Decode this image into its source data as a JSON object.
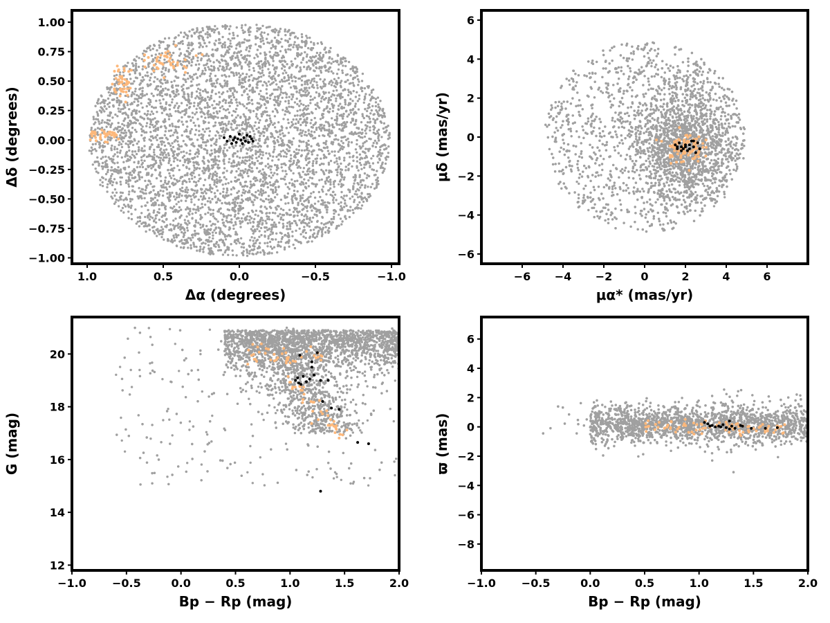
{
  "colors": {
    "field": "#a0a0a0",
    "members_orange": "#fdb87b",
    "members_black": "#000000"
  },
  "chart_data": [
    {
      "type": "scatter",
      "xlabel": "Δα (degrees)",
      "ylabel": "Δδ (degrees)",
      "xlim": [
        1.1,
        -1.05
      ],
      "ylim": [
        -1.05,
        1.1
      ],
      "x_inverted": true,
      "xticks": [
        1.0,
        0.5,
        0.0,
        -0.5,
        -1.0
      ],
      "xtick_labels": [
        "1.0",
        "0.5",
        "0.0",
        "−0.5",
        "−1.0"
      ],
      "yticks": [
        1.0,
        0.75,
        0.5,
        0.25,
        0.0,
        -0.25,
        -0.5,
        -0.75,
        -1.0
      ],
      "ytick_labels": [
        "1.00",
        "0.75",
        "0.50",
        "0.25",
        "0.00",
        "−0.25",
        "−0.50",
        "−0.75",
        "−1.00"
      ],
      "series": [
        {
          "role": "field",
          "color": "#a0a0a0",
          "n_points_approx": 5000,
          "distribution": "uniform disk centred (0,0), radius 1.0 deg"
        },
        {
          "role": "orange",
          "color": "#fdb87b",
          "groups": [
            {
              "center": [
                0.77,
                0.48
              ],
              "spread": [
                0.03,
                0.08
              ],
              "n": 45
            },
            {
              "center": [
                0.45,
                0.68
              ],
              "spread": [
                0.07,
                0.05
              ],
              "n": 40
            },
            {
              "center": [
                0.88,
                0.04
              ],
              "spread": [
                0.06,
                0.03
              ],
              "n": 35
            }
          ]
        },
        {
          "role": "black",
          "color": "#000000",
          "points": [
            [
              0.1,
              0.02
            ],
            [
              0.08,
              -0.01
            ],
            [
              0.06,
              0.03
            ],
            [
              0.04,
              0.0
            ],
            [
              0.02,
              -0.02
            ],
            [
              0.01,
              0.01
            ],
            [
              -0.01,
              0.0
            ],
            [
              -0.02,
              -0.03
            ],
            [
              -0.03,
              0.02
            ],
            [
              -0.05,
              0.04
            ],
            [
              -0.06,
              -0.02
            ],
            [
              -0.08,
              0.01
            ],
            [
              -0.09,
              -0.01
            ],
            [
              -0.07,
              0.03
            ],
            [
              0.05,
              -0.03
            ],
            [
              0.0,
              0.05
            ],
            [
              -0.04,
              -0.01
            ],
            [
              0.03,
              0.02
            ]
          ]
        }
      ]
    },
    {
      "type": "scatter",
      "xlabel": "μα* (mas/yr)",
      "ylabel": "μδ (mas/yr)",
      "xlim": [
        -8.0,
        8.0
      ],
      "ylim": [
        -6.5,
        6.5
      ],
      "xticks": [
        -6,
        -4,
        -2,
        0,
        2,
        4,
        6
      ],
      "xtick_labels": [
        "−6",
        "−4",
        "−2",
        "0",
        "2",
        "4",
        "6"
      ],
      "yticks": [
        -6,
        -4,
        -2,
        0,
        2,
        4,
        6
      ],
      "ytick_labels": [
        "−6",
        "−4",
        "−2",
        "0",
        "2",
        "4",
        "6"
      ],
      "series": [
        {
          "role": "field",
          "color": "#a0a0a0",
          "n_points_approx": 5000,
          "distribution": "disk centred (0,0), radius 5 mas/yr, concentrated near (2,-0.5)"
        },
        {
          "role": "orange",
          "color": "#fdb87b",
          "center": [
            1.9,
            -0.5
          ],
          "spread": [
            0.45,
            0.4
          ],
          "n": 90
        },
        {
          "role": "black",
          "color": "#000000",
          "points": [
            [
              1.5,
              -0.4
            ],
            [
              1.6,
              -0.6
            ],
            [
              1.8,
              -0.5
            ],
            [
              2.0,
              -0.4
            ],
            [
              2.2,
              -0.6
            ],
            [
              2.4,
              -0.5
            ],
            [
              2.6,
              -0.3
            ],
            [
              1.7,
              -0.3
            ],
            [
              2.1,
              -0.7
            ],
            [
              2.3,
              -0.2
            ],
            [
              1.9,
              -0.6
            ],
            [
              2.5,
              -0.8
            ],
            [
              2.0,
              -0.5
            ],
            [
              1.6,
              -0.5
            ],
            [
              2.2,
              -0.4
            ],
            [
              2.7,
              -0.6
            ],
            [
              1.8,
              -0.7
            ],
            [
              2.4,
              -0.2
            ]
          ]
        }
      ]
    },
    {
      "type": "scatter",
      "xlabel": "Bp − Rp (mag)",
      "ylabel": "G (mag)",
      "xlim": [
        -1.0,
        2.0
      ],
      "ylim": [
        11.8,
        21.4
      ],
      "y_inverted": false,
      "xticks": [
        -1.0,
        -0.5,
        0.0,
        0.5,
        1.0,
        1.5,
        2.0
      ],
      "xtick_labels": [
        "−1.0",
        "−0.5",
        "0.0",
        "0.5",
        "1.0",
        "1.5",
        "2.0"
      ],
      "yticks": [
        12,
        14,
        16,
        18,
        20
      ],
      "ytick_labels": [
        "12",
        "14",
        "16",
        "18",
        "20"
      ],
      "series": [
        {
          "role": "field",
          "color": "#a0a0a0",
          "n_points_approx": 4500,
          "distribution": "dense band G 19–21 for Bp−Rp 0.3–2.0, diagonal sequence down to G≈16 at Bp−Rp≈1.6"
        },
        {
          "role": "orange",
          "color": "#fdb87b",
          "n": 80,
          "sequence": "along G≈20 at 0.5–1.2 and diagonal G 19→17 at Bp−Rp 1.0→1.5"
        },
        {
          "role": "black",
          "color": "#000000",
          "points": [
            [
              1.09,
              19.95
            ],
            [
              1.2,
              19.7
            ],
            [
              1.25,
              20.05
            ],
            [
              1.07,
              19.1
            ],
            [
              1.12,
              19.15
            ],
            [
              1.05,
              19.0
            ],
            [
              1.18,
              19.05
            ],
            [
              1.22,
              19.2
            ],
            [
              1.28,
              19.0
            ],
            [
              1.35,
              19.0
            ],
            [
              1.08,
              18.9
            ],
            [
              1.15,
              18.95
            ],
            [
              1.3,
              18.2
            ],
            [
              1.38,
              17.95
            ],
            [
              1.45,
              17.9
            ],
            [
              1.62,
              16.65
            ],
            [
              1.72,
              16.6
            ],
            [
              1.28,
              14.8
            ],
            [
              1.2,
              19.5
            ],
            [
              1.1,
              18.85
            ]
          ]
        }
      ]
    },
    {
      "type": "scatter",
      "xlabel": "Bp − Rp (mag)",
      "ylabel": "ϖ (mas)",
      "xlim": [
        -1.0,
        2.0
      ],
      "ylim": [
        -9.8,
        7.5
      ],
      "xticks": [
        -1.0,
        -0.5,
        0.0,
        0.5,
        1.0,
        1.5,
        2.0
      ],
      "xtick_labels": [
        "−1.0",
        "−0.5",
        "0.0",
        "0.5",
        "1.0",
        "1.5",
        "2.0"
      ],
      "yticks": [
        -8,
        -6,
        -4,
        -2,
        0,
        2,
        4,
        6
      ],
      "ytick_labels": [
        "−8",
        "−6",
        "−4",
        "−2",
        "0",
        "2",
        "4",
        "6"
      ],
      "series": [
        {
          "role": "field",
          "color": "#a0a0a0",
          "n_points_approx": 4000,
          "distribution": "band centred ϖ≈0.2, spread ≈0.7 mas, Bp−Rp 0–2"
        },
        {
          "role": "orange",
          "color": "#fdb87b",
          "n": 80,
          "center_y": 0.0,
          "x_range": [
            0.5,
            1.8
          ]
        },
        {
          "role": "black",
          "color": "#000000",
          "points": [
            [
              1.05,
              0.3
            ],
            [
              1.08,
              0.2
            ],
            [
              1.12,
              0.1
            ],
            [
              1.15,
              0.0
            ],
            [
              1.18,
              0.05
            ],
            [
              1.22,
              0.15
            ],
            [
              1.25,
              -0.05
            ],
            [
              1.28,
              0.4
            ],
            [
              1.3,
              0.05
            ],
            [
              1.33,
              -0.1
            ],
            [
              1.38,
              0.1
            ],
            [
              1.4,
              0.05
            ],
            [
              1.48,
              -0.1
            ],
            [
              1.61,
              -0.1
            ],
            [
              1.72,
              -0.05
            ],
            [
              1.28,
              -0.15
            ],
            [
              1.1,
              0.05
            ],
            [
              1.2,
              0.0
            ]
          ]
        }
      ]
    }
  ]
}
